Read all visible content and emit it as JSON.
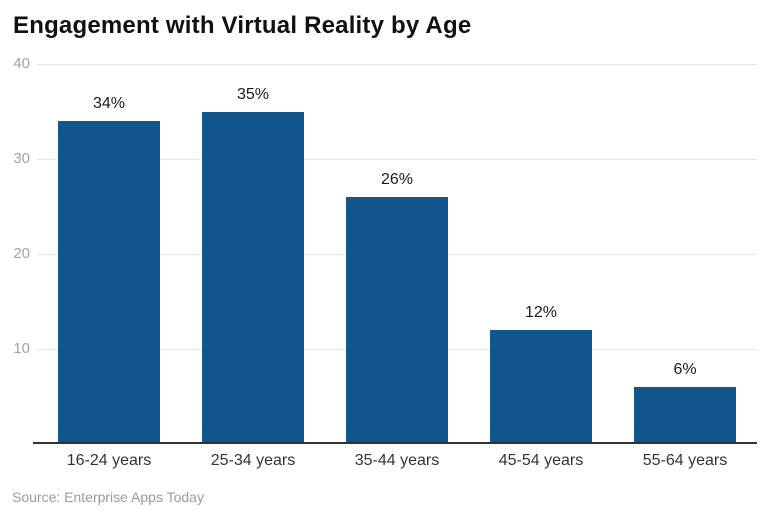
{
  "title": "Engagement with Virtual Reality by Age",
  "source": "Source: Enterprise Apps Today",
  "colors": {
    "bar": "#11568C",
    "title_text": "#111111",
    "axis_line": "#333333",
    "gridline": "#e6e6e6",
    "tick_label": "#a3a3a3",
    "x_label": "#333333",
    "value_label": "#1a1a1a",
    "source_text": "#9a9a9a",
    "background": "#ffffff"
  },
  "chart_data": {
    "type": "bar",
    "title": "Engagement with Virtual Reality by Age",
    "categories": [
      "16-24 years",
      "25-34 years",
      "35-44 years",
      "45-54 years",
      "55-64 years"
    ],
    "values": [
      34,
      35,
      26,
      12,
      6
    ],
    "value_labels": [
      "34%",
      "35%",
      "26%",
      "12%",
      "6%"
    ],
    "xlabel": "",
    "ylabel": "",
    "ylim": [
      0,
      40
    ],
    "yticks": [
      10,
      20,
      30,
      40
    ],
    "grid": true,
    "legend": false,
    "source": "Source: Enterprise Apps Today"
  }
}
